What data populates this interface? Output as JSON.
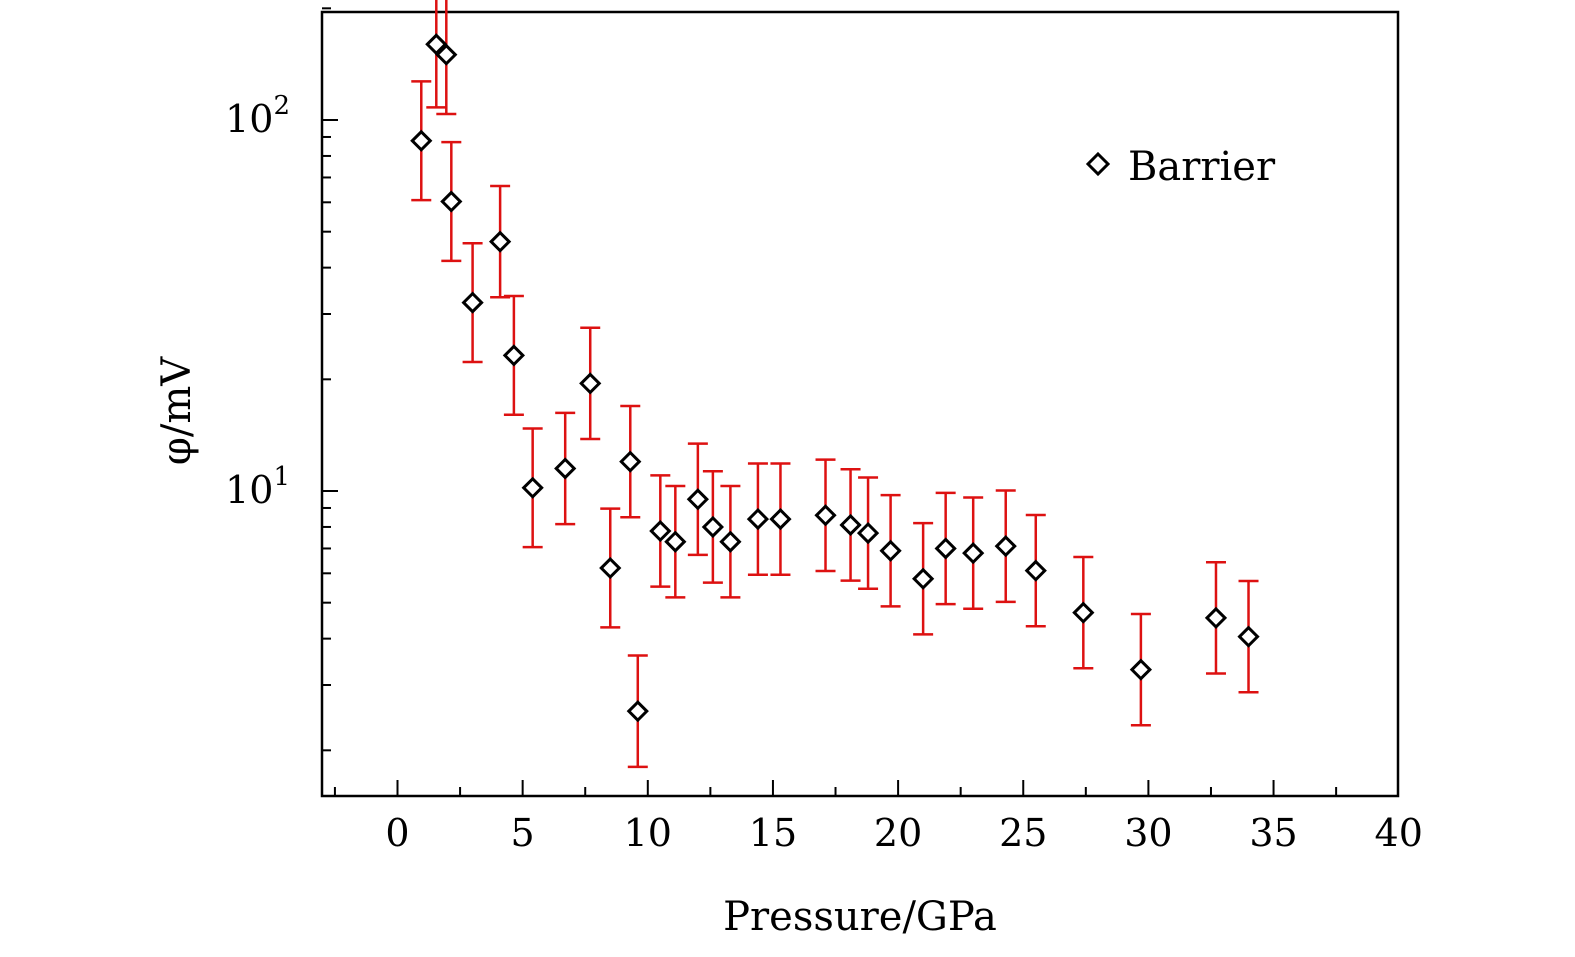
{
  "chart_data": {
    "type": "scatter",
    "xlabel": "Pressure/GPa",
    "ylabel": "φ/mV",
    "xlim": [
      -3,
      40
    ],
    "ylim": [
      1.6,
      200
    ],
    "yscale": "log",
    "x_ticks": [
      "0",
      "5",
      "10",
      "15",
      "20",
      "25",
      "30",
      "35",
      "40"
    ],
    "y_ticks": [
      {
        "base": "10",
        "exp": "1"
      },
      {
        "base": "10",
        "exp": "2"
      }
    ],
    "legend": {
      "position": "top-right"
    },
    "grid": false,
    "colors": {
      "marker": "#000000",
      "errorbar": "#dd1111"
    },
    "series": [
      {
        "name": "Barrier",
        "marker": "diamond-open",
        "points": [
          {
            "x": 0.95,
            "y": 87.9,
            "err": 0.16
          },
          {
            "x": 1.55,
            "y": 160.0,
            "err": 0.17
          },
          {
            "x": 1.95,
            "y": 150.0,
            "err": 0.16
          },
          {
            "x": 2.15,
            "y": 60.3,
            "err": 0.16
          },
          {
            "x": 3.0,
            "y": 32.2,
            "err": 0.16
          },
          {
            "x": 4.1,
            "y": 47.0,
            "err": 0.15
          },
          {
            "x": 4.65,
            "y": 23.2,
            "err": 0.16
          },
          {
            "x": 5.4,
            "y": 10.2,
            "err": 0.16
          },
          {
            "x": 6.7,
            "y": 11.5,
            "err": 0.15
          },
          {
            "x": 7.7,
            "y": 19.5,
            "err": 0.15
          },
          {
            "x": 8.5,
            "y": 6.2,
            "err": 0.16
          },
          {
            "x": 9.3,
            "y": 12.0,
            "err": 0.15
          },
          {
            "x": 9.6,
            "y": 2.55,
            "err": 0.15
          },
          {
            "x": 10.5,
            "y": 7.8,
            "err": 0.15
          },
          {
            "x": 11.1,
            "y": 7.3,
            "err": 0.15
          },
          {
            "x": 12.0,
            "y": 9.5,
            "err": 0.15
          },
          {
            "x": 12.6,
            "y": 8.0,
            "err": 0.15
          },
          {
            "x": 13.3,
            "y": 7.3,
            "err": 0.15
          },
          {
            "x": 14.4,
            "y": 8.4,
            "err": 0.15
          },
          {
            "x": 15.3,
            "y": 8.4,
            "err": 0.15
          },
          {
            "x": 17.1,
            "y": 8.6,
            "err": 0.15
          },
          {
            "x": 18.1,
            "y": 8.1,
            "err": 0.15
          },
          {
            "x": 18.8,
            "y": 7.7,
            "err": 0.15
          },
          {
            "x": 19.7,
            "y": 6.9,
            "err": 0.15
          },
          {
            "x": 21.0,
            "y": 5.8,
            "err": 0.15
          },
          {
            "x": 21.9,
            "y": 7.0,
            "err": 0.15
          },
          {
            "x": 23.0,
            "y": 6.8,
            "err": 0.15
          },
          {
            "x": 24.3,
            "y": 7.1,
            "err": 0.15
          },
          {
            "x": 25.5,
            "y": 6.1,
            "err": 0.15
          },
          {
            "x": 27.4,
            "y": 4.7,
            "err": 0.15
          },
          {
            "x": 29.7,
            "y": 3.3,
            "err": 0.15
          },
          {
            "x": 32.7,
            "y": 4.55,
            "err": 0.15
          },
          {
            "x": 34.0,
            "y": 4.05,
            "err": 0.15
          }
        ]
      }
    ]
  }
}
